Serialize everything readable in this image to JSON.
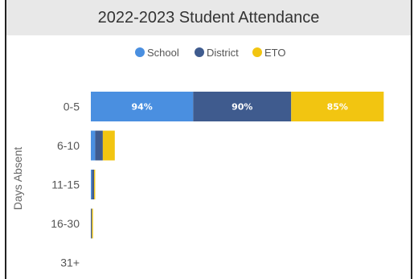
{
  "chart_data": {
    "type": "bar",
    "orientation": "horizontal",
    "stacked": true,
    "title": "2022-2023 Student Attendance",
    "ylabel": "Days Absent",
    "categories": [
      "0-5",
      "6-10",
      "11-15",
      "16-30",
      "31+"
    ],
    "series": [
      {
        "name": "School",
        "color": "#4a8fe0",
        "values": [
          94,
          4,
          1,
          0,
          0
        ],
        "labels": [
          "94%",
          "",
          "",
          "",
          ""
        ]
      },
      {
        "name": "District",
        "color": "#3f5b8e",
        "values": [
          90,
          7,
          2,
          1,
          0
        ],
        "labels": [
          "90%",
          "",
          "",
          "",
          ""
        ]
      },
      {
        "name": "ETO",
        "color": "#f2c511",
        "values": [
          85,
          11,
          1,
          1,
          0
        ],
        "labels": [
          "85%",
          "",
          "",
          "",
          ""
        ]
      }
    ],
    "legend_position": "top",
    "grid": false
  }
}
